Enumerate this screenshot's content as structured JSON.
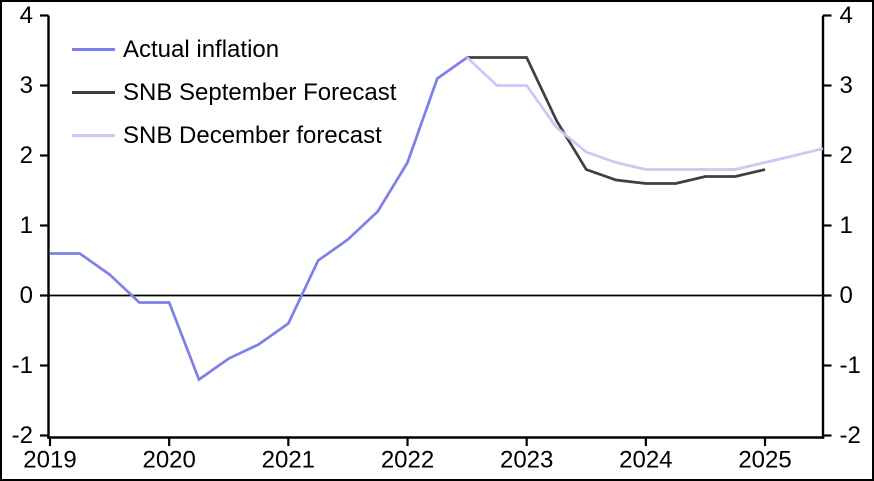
{
  "chart_data": {
    "type": "line",
    "title": "",
    "x_tick_labels": [
      "2019",
      "2020",
      "2021",
      "2022",
      "2023",
      "2024",
      "2025"
    ],
    "x_tick_years": [
      2019,
      2020,
      2021,
      2022,
      2023,
      2024,
      2025
    ],
    "y_ticks": [
      4,
      3,
      2,
      1,
      0,
      -1,
      -2
    ],
    "ylim": [
      -2,
      4
    ],
    "xlim": [
      2019.0,
      2025.49
    ],
    "x_frequency": "quarterly",
    "grid": false,
    "zero_line": true,
    "legend_position": "top-left",
    "axis_color": "#000000",
    "series": [
      {
        "name": "Actual inflation",
        "color": "#7d80e8",
        "x": [
          2019.0,
          2019.25,
          2019.5,
          2019.75,
          2020.0,
          2020.25,
          2020.5,
          2020.75,
          2021.0,
          2021.25,
          2021.5,
          2021.75,
          2022.0,
          2022.25,
          2022.5
        ],
        "values": [
          0.6,
          0.6,
          0.3,
          -0.1,
          -0.1,
          -1.2,
          -0.9,
          -0.7,
          -0.4,
          0.5,
          0.8,
          1.2,
          1.9,
          3.1,
          3.4
        ]
      },
      {
        "name": "SNB September Forecast",
        "color": "#404040",
        "x": [
          2022.5,
          2022.75,
          2023.0,
          2023.25,
          2023.5,
          2023.75,
          2024.0,
          2024.25,
          2024.5,
          2024.75,
          2025.0
        ],
        "values": [
          3.4,
          3.4,
          3.4,
          2.5,
          1.8,
          1.65,
          1.6,
          1.6,
          1.7,
          1.7,
          1.8
        ]
      },
      {
        "name": "SNB December forecast",
        "color": "#c6caf4",
        "x": [
          2022.5,
          2022.75,
          2023.0,
          2023.25,
          2023.5,
          2023.75,
          2024.0,
          2024.25,
          2024.5,
          2024.75,
          2025.0,
          2025.25,
          2025.5
        ],
        "values": [
          3.4,
          3.0,
          3.0,
          2.4,
          2.05,
          1.9,
          1.8,
          1.8,
          1.8,
          1.8,
          1.9,
          2.0,
          2.1
        ]
      }
    ]
  }
}
